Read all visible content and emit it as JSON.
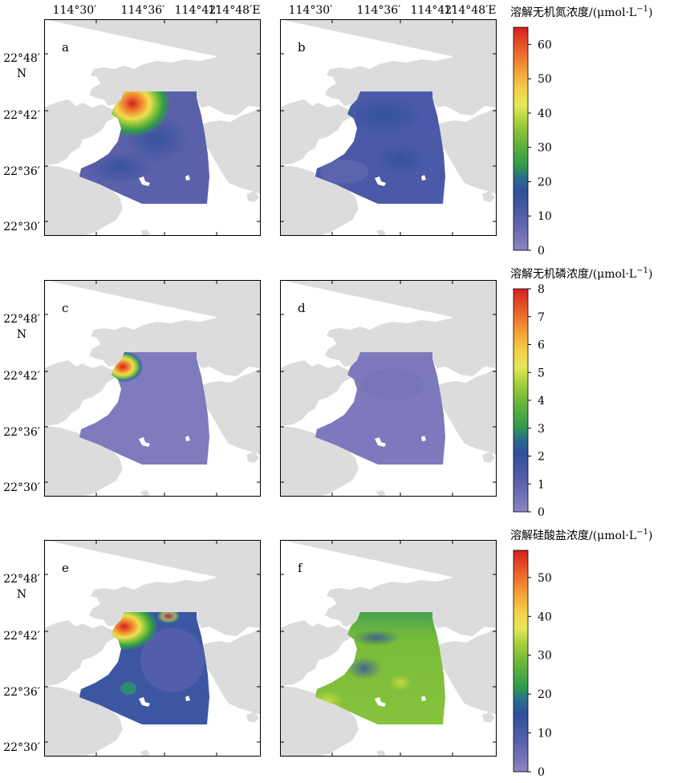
{
  "axes": {
    "top_ticks": [
      "114°30′",
      "114°36′",
      "114°42′",
      "114°48′E"
    ],
    "left_ticks": [
      "22°48′",
      "22°42′",
      "22°36′",
      "22°30′"
    ],
    "north_label": "N"
  },
  "panels": [
    {
      "label": "a",
      "variable": "DIN"
    },
    {
      "label": "b",
      "variable": "DIN"
    },
    {
      "label": "c",
      "variable": "DIP"
    },
    {
      "label": "d",
      "variable": "DIP"
    },
    {
      "label": "e",
      "variable": "DSi"
    },
    {
      "label": "f",
      "variable": "DSi"
    }
  ],
  "colorbars": [
    {
      "title": "溶解无机氮浓度/(μmol·L",
      "title_sup": "−1",
      "title_close": ")",
      "ticks": [
        "60",
        "50",
        "40",
        "30",
        "20",
        "10",
        "0"
      ],
      "min": 0,
      "max": 65
    },
    {
      "title": "溶解无机磷浓度/(μmol·L",
      "title_sup": "−1",
      "title_close": ")",
      "ticks": [
        "8",
        "7",
        "6",
        "5",
        "4",
        "3",
        "2",
        "1",
        "0"
      ],
      "min": 0,
      "max": 8
    },
    {
      "title": "溶解硅酸盐浓度/(μmol·L",
      "title_sup": "−1",
      "title_close": ")",
      "ticks": [
        "50",
        "40",
        "30",
        "20",
        "10",
        "0"
      ],
      "min": 0,
      "max": 57
    }
  ],
  "colors": {
    "land": "#dcdcdc",
    "sea": "#ffffff",
    "low": "#7a77b8",
    "mid_low": "#2f4f9c",
    "mid": "#3f9a46",
    "mid_high": "#a8cf3a",
    "high_mid": "#f0e040",
    "high": "#e33a1f"
  }
}
